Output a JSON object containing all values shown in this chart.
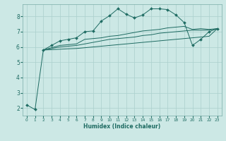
{
  "xlabel": "Humidex (Indice chaleur)",
  "bg_color": "#cce8e5",
  "grid_color": "#aacfcc",
  "line_color": "#1e6b62",
  "xlim": [
    -0.5,
    23.5
  ],
  "ylim": [
    1.5,
    8.8
  ],
  "yticks": [
    2,
    3,
    4,
    5,
    6,
    7,
    8
  ],
  "xticks": [
    0,
    1,
    2,
    3,
    4,
    5,
    6,
    7,
    8,
    9,
    10,
    11,
    12,
    13,
    14,
    15,
    16,
    17,
    18,
    19,
    20,
    21,
    22,
    23
  ],
  "series": [
    {
      "x": [
        0,
        1,
        2,
        3,
        4,
        5,
        6,
        7,
        8,
        9,
        10,
        11,
        12,
        13,
        14,
        15,
        16,
        17,
        18,
        19,
        20,
        21,
        22,
        23
      ],
      "y": [
        2.2,
        1.9,
        5.8,
        6.1,
        6.4,
        6.5,
        6.6,
        7.0,
        7.05,
        7.7,
        8.05,
        8.5,
        8.15,
        7.9,
        8.1,
        8.5,
        8.5,
        8.45,
        8.1,
        7.6,
        6.1,
        6.5,
        7.0,
        7.2
      ],
      "marker": true
    },
    {
      "x": [
        2,
        3,
        4,
        5,
        6,
        7,
        8,
        9,
        10,
        11,
        12,
        13,
        14,
        15,
        16,
        17,
        18,
        19,
        20,
        21,
        22,
        23
      ],
      "y": [
        5.8,
        5.95,
        6.1,
        6.15,
        6.2,
        6.5,
        6.55,
        6.6,
        6.7,
        6.75,
        6.85,
        6.95,
        7.05,
        7.1,
        7.15,
        7.25,
        7.3,
        7.35,
        7.15,
        7.2,
        7.15,
        7.2
      ],
      "marker": false
    },
    {
      "x": [
        2,
        3,
        4,
        5,
        6,
        7,
        8,
        9,
        10,
        11,
        12,
        13,
        14,
        15,
        16,
        17,
        18,
        19,
        20,
        21,
        22,
        23
      ],
      "y": [
        5.8,
        5.9,
        6.0,
        6.05,
        6.1,
        6.2,
        6.3,
        6.4,
        6.5,
        6.55,
        6.6,
        6.65,
        6.75,
        6.8,
        6.9,
        6.95,
        7.0,
        7.05,
        7.1,
        7.1,
        7.1,
        7.2
      ],
      "marker": false
    },
    {
      "x": [
        2,
        3,
        4,
        5,
        6,
        7,
        8,
        9,
        10,
        11,
        12,
        13,
        14,
        15,
        16,
        17,
        18,
        19,
        20,
        21,
        22,
        23
      ],
      "y": [
        5.8,
        5.82,
        5.85,
        5.88,
        5.9,
        5.95,
        6.0,
        6.05,
        6.1,
        6.15,
        6.2,
        6.25,
        6.3,
        6.35,
        6.4,
        6.45,
        6.5,
        6.55,
        6.6,
        6.65,
        6.7,
        7.2
      ],
      "marker": false
    }
  ]
}
